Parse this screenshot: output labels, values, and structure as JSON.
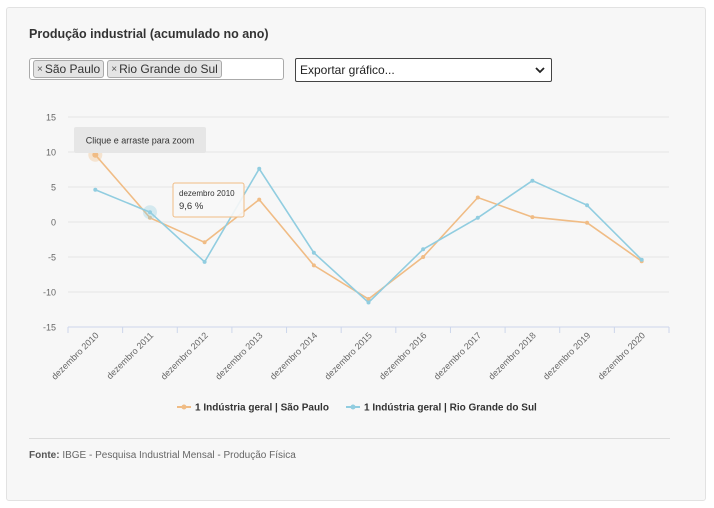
{
  "title": "Produção industrial (acumulado no ano)",
  "filter": {
    "tags": [
      "São Paulo",
      "Rio Grande do Sul"
    ],
    "remove_symbol": "×"
  },
  "export": {
    "label": "Exportar gráfico..."
  },
  "zoom_hint": "Clique e arraste para zoom",
  "tooltip": {
    "label": "dezembro 2010",
    "value": "9,6 %"
  },
  "source": {
    "label": "Fonte:",
    "text": "IBGE - Pesquisa Industrial Mensal - Produção Física"
  },
  "colors": {
    "sao_paulo": "#f0bc85",
    "rio_grande_do_sul": "#91cde0"
  },
  "chart_data": {
    "type": "line",
    "categories": [
      "dezembro 2010",
      "dezembro 2011",
      "dezembro 2012",
      "dezembro 2013",
      "dezembro 2014",
      "dezembro 2015",
      "dezembro 2016",
      "dezembro 2017",
      "dezembro 2018",
      "dezembro 2019",
      "dezembro 2020"
    ],
    "ylim": [
      -15,
      15
    ],
    "yticks": [
      15,
      10,
      5,
      0,
      -5,
      -10,
      -15
    ],
    "grid": true,
    "legend": "bottom",
    "series": [
      {
        "name": "1 Indústria geral | São Paulo",
        "color": "#f0bc85",
        "values": [
          9.6,
          0.6,
          -2.9,
          3.2,
          -6.2,
          -11.0,
          -5.0,
          3.5,
          0.7,
          -0.1,
          -5.6
        ]
      },
      {
        "name": "1 Indústria geral | Rio Grande do Sul",
        "color": "#91cde0",
        "values": [
          4.6,
          1.4,
          -5.7,
          7.6,
          -4.4,
          -11.5,
          -3.9,
          0.6,
          5.9,
          2.4,
          -5.4
        ]
      }
    ]
  }
}
